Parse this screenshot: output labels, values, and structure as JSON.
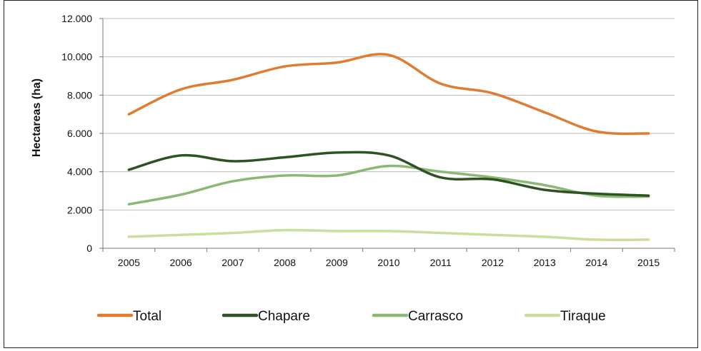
{
  "chart_data": {
    "type": "line",
    "title": "",
    "xlabel": "",
    "ylabel": "Hectareas (ha)",
    "categories": [
      "2005",
      "2006",
      "2007",
      "2008",
      "2009",
      "2010",
      "2011",
      "2012",
      "2013",
      "2014",
      "2015"
    ],
    "ylim": [
      0,
      12000
    ],
    "yticks": [
      0,
      2000,
      4000,
      6000,
      8000,
      10000,
      12000
    ],
    "ytick_labels": [
      "0",
      "2.000",
      "4.000",
      "6.000",
      "8.000",
      "10.000",
      "12.000"
    ],
    "grid": true,
    "legend_position": "bottom",
    "series": [
      {
        "name": "Total",
        "color": "#E07B32",
        "values": [
          7000,
          8300,
          8800,
          9500,
          9700,
          10100,
          8600,
          8100,
          7100,
          6100,
          6000
        ]
      },
      {
        "name": "Chapare",
        "color": "#2F5224",
        "values": [
          4100,
          4850,
          4550,
          4750,
          5000,
          4850,
          3700,
          3600,
          3050,
          2850,
          2750
        ]
      },
      {
        "name": "Carrasco",
        "color": "#8BB874",
        "values": [
          2300,
          2800,
          3500,
          3800,
          3800,
          4300,
          4000,
          3700,
          3300,
          2750,
          2700
        ]
      },
      {
        "name": "Tiraque",
        "color": "#C8DE9A",
        "values": [
          600,
          700,
          800,
          950,
          900,
          900,
          800,
          700,
          600,
          450,
          450
        ]
      }
    ]
  }
}
